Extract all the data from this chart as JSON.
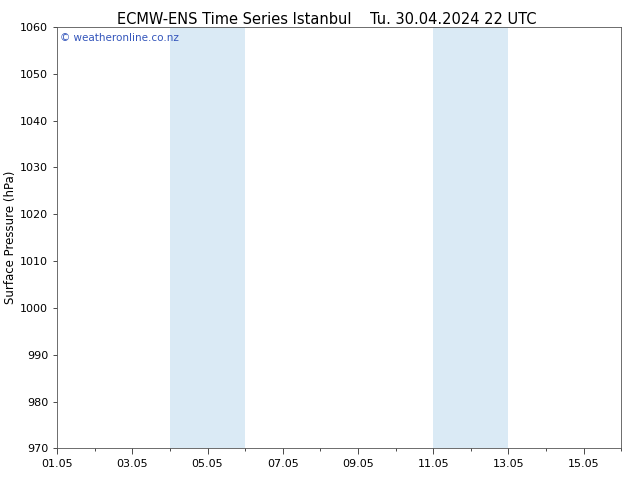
{
  "title_left": "ECMW-ENS Time Series Istanbul",
  "title_right": "Tu. 30.04.2024 22 UTC",
  "ylabel": "Surface Pressure (hPa)",
  "ylim": [
    970,
    1060
  ],
  "yticks": [
    970,
    980,
    990,
    1000,
    1010,
    1020,
    1030,
    1040,
    1050,
    1060
  ],
  "xlim_start": 0,
  "xlim_end": 15,
  "xtick_positions": [
    0,
    2,
    4,
    6,
    8,
    10,
    12,
    14
  ],
  "xtick_labels": [
    "01.05",
    "03.05",
    "05.05",
    "07.05",
    "09.05",
    "11.05",
    "13.05",
    "15.05"
  ],
  "shaded_bands": [
    {
      "xmin": 3.0,
      "xmax": 5.0
    },
    {
      "xmin": 10.0,
      "xmax": 12.0
    }
  ],
  "band_color": "#daeaf5",
  "watermark_text": "© weatheronline.co.nz",
  "watermark_color": "#3355bb",
  "background_color": "#ffffff",
  "title_fontsize": 10.5,
  "tick_fontsize": 8,
  "ylabel_fontsize": 8.5
}
